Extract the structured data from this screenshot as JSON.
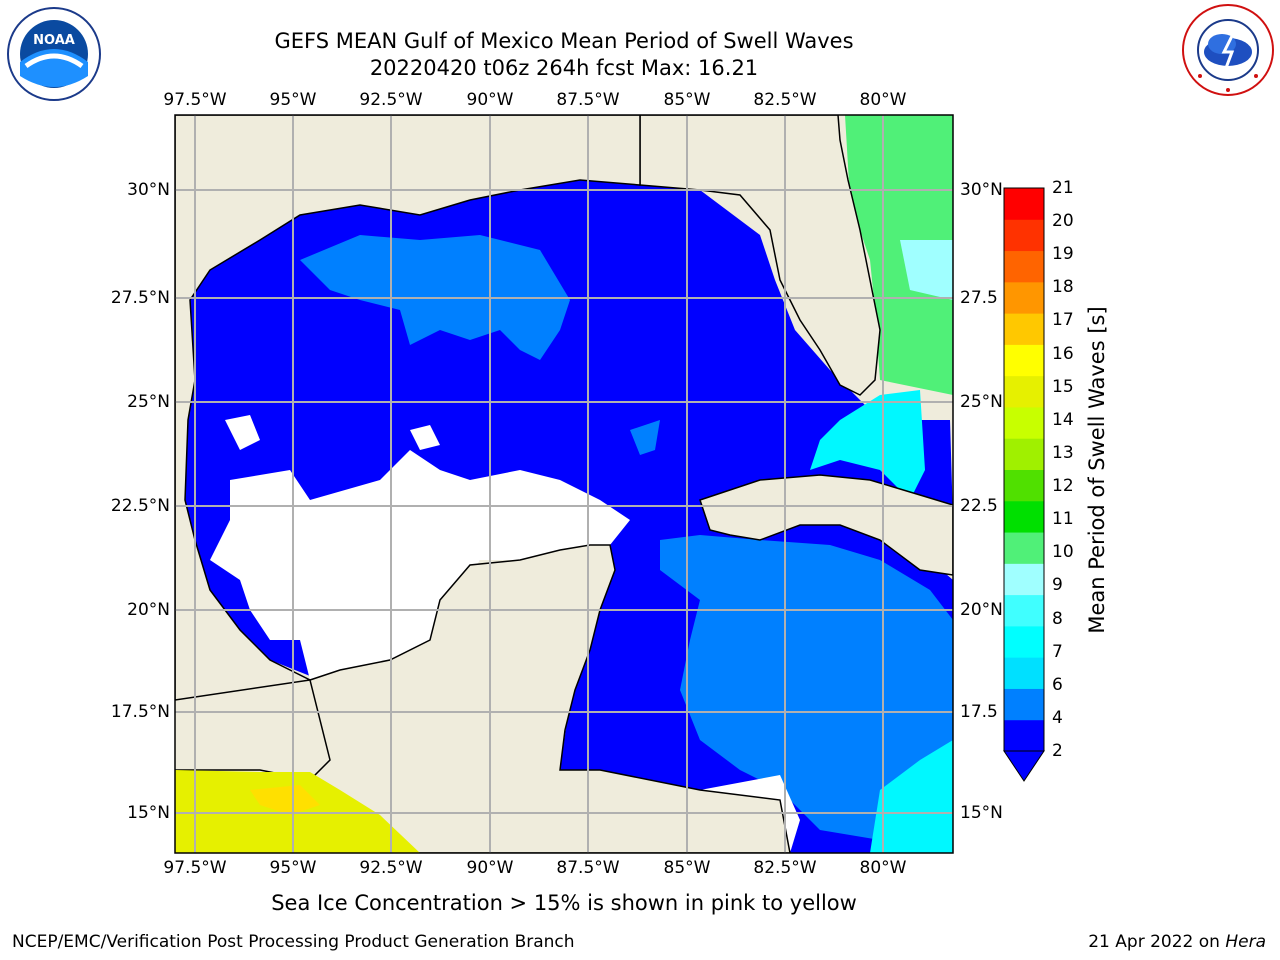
{
  "title": {
    "line1": "GEFS MEAN Gulf of Mexico Mean Period of Swell Waves",
    "line2": "20220420 t06z 264h fcst   Max: 16.21"
  },
  "map": {
    "lon_ticks": [
      "97.5°W",
      "95°W",
      "92.5°W",
      "90°W",
      "87.5°W",
      "85°W",
      "82.5°W",
      "80°W"
    ],
    "lat_ticks_left": [
      "30°N",
      "27.5°N",
      "25°N",
      "22.5°N",
      "20°N",
      "17.5°N",
      "15°N"
    ],
    "lat_ticks_right": [
      "30°N",
      "27.5",
      "25°N",
      "22.5",
      "20°N",
      "17.5",
      "15°N"
    ],
    "colors": {
      "land": "#efecdc",
      "water_blue": "#0000ff",
      "water_light": "#0080ff",
      "cyan": "#00f8ff",
      "green": "#50f078",
      "ice": "#e6f000"
    }
  },
  "colorbar": {
    "label": "Mean Period of Swell Waves [s]",
    "ticks": [
      "21",
      "20",
      "19",
      "18",
      "17",
      "16",
      "15",
      "14",
      "13",
      "12",
      "11",
      "10",
      "9",
      "8",
      "7",
      "6",
      "4",
      "2"
    ],
    "colors": [
      "#0000ff",
      "#0080ff",
      "#00e0ff",
      "#00ffff",
      "#40ffff",
      "#a0ffff",
      "#50f078",
      "#00e000",
      "#50e000",
      "#a0f000",
      "#c8ff00",
      "#e6f000",
      "#ffff00",
      "#ffc800",
      "#ff9600",
      "#ff6400",
      "#ff3200",
      "#ff0000"
    ]
  },
  "notes": {
    "ice": "Sea Ice Concentration > 15% is shown in pink to yellow"
  },
  "footer": {
    "left": "NCEP/EMC/Verification Post Processing Product Generation Branch",
    "date": "21 Apr 2022 on ",
    "machine": "Hera"
  },
  "logos": {
    "noaa": "NOAA",
    "nws": "NATIONAL WEATHER SERVICE"
  }
}
